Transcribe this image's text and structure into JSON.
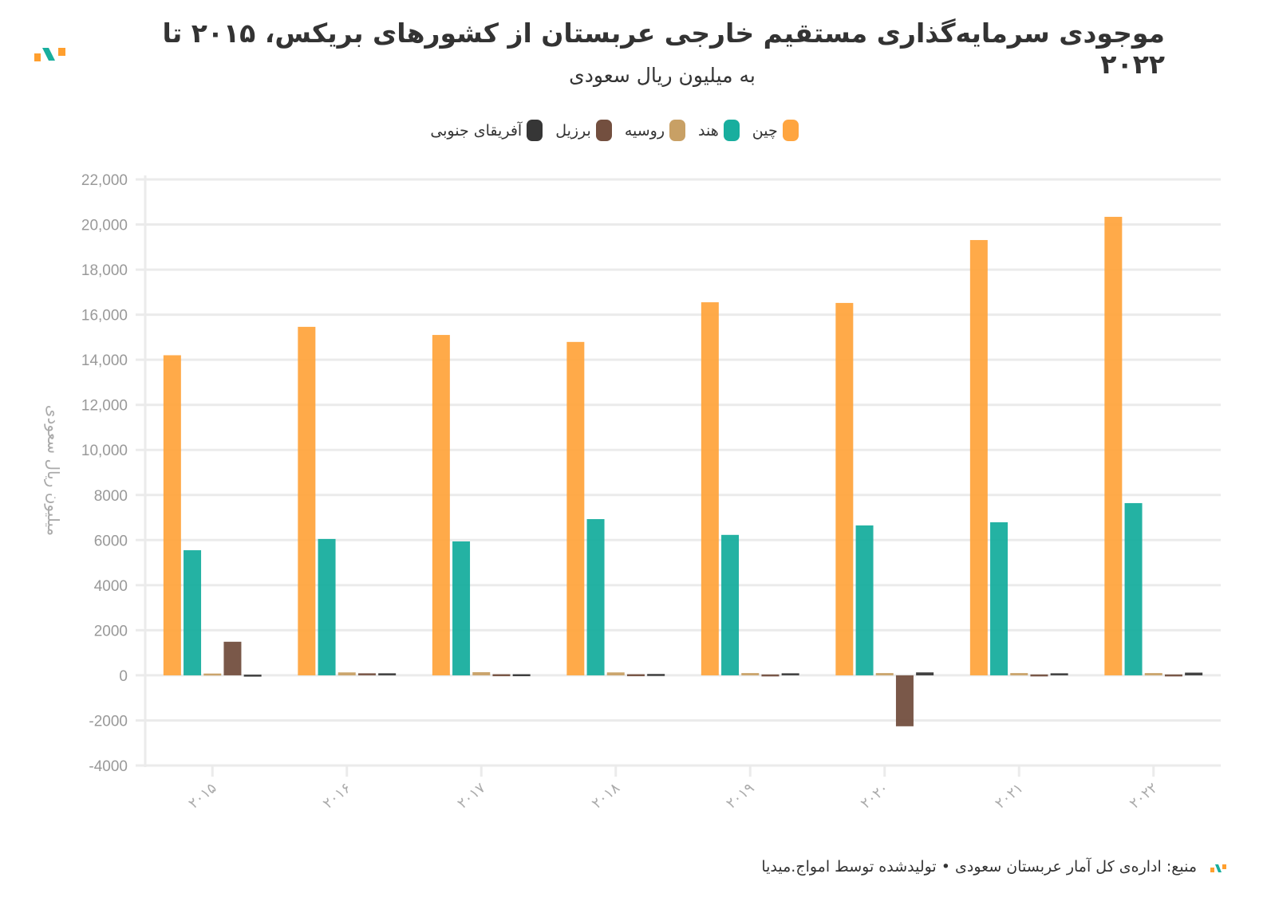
{
  "header": {
    "title": "موجودی سرمایه‌گذاری مستقیم خارجی عربستان از کشورهای بریکس، ۲۰۱۵ تا ۲۰۲۲",
    "subtitle": "به میلیون ریال سعودی"
  },
  "footer": {
    "source": "منبع: اداره‌ی کل آمار عربستان سعودی • تولیدشده توسط امواج.میدیا"
  },
  "chart_data": {
    "type": "bar",
    "title": "موجودی سرمایه‌گذاری مستقیم خارجی عربستان از کشورهای بریکس، ۲۰۱۵ تا ۲۰۲۲",
    "subtitle": "به میلیون ریال سعودی",
    "xlabel": "",
    "ylabel": "میلیون ریال سعودی",
    "ylim": [
      -4000,
      22000
    ],
    "yticks": [
      -4000,
      -2000,
      0,
      2000,
      4000,
      6000,
      8000,
      10000,
      12000,
      14000,
      16000,
      18000,
      20000,
      22000
    ],
    "ytick_labels": [
      "-4000",
      "-2000",
      "0",
      "2000",
      "4000",
      "6000",
      "8000",
      "10,000",
      "12,000",
      "14,000",
      "16,000",
      "18,000",
      "20,000",
      "22,000"
    ],
    "categories": [
      "۲۰۱۵",
      "۲۰۱۶",
      "۲۰۱۷",
      "۲۰۱۸",
      "۲۰۱۹",
      "۲۰۲۰",
      "۲۰۲۱",
      "۲۰۲۲"
    ],
    "grid": true,
    "legend_position": "top-center",
    "series": [
      {
        "name": "چین",
        "color": "#ffa53f",
        "values": [
          14200,
          15460,
          15100,
          14790,
          16550,
          16520,
          19310,
          20340
        ]
      },
      {
        "name": "هند",
        "color": "#18ae9e",
        "values": [
          5550,
          6050,
          5940,
          6930,
          6230,
          6650,
          6790,
          7640
        ]
      },
      {
        "name": "روسیه",
        "color": "#c8a065",
        "values": [
          80,
          130,
          140,
          130,
          100,
          100,
          100,
          100
        ]
      },
      {
        "name": "برزیل",
        "color": "#734f3f",
        "values": [
          1490,
          90,
          50,
          50,
          40,
          -2260,
          40,
          40
        ]
      },
      {
        "name": "آفریقای جنوبی",
        "color": "#363636",
        "values": [
          30,
          90,
          50,
          60,
          90,
          130,
          90,
          120
        ]
      }
    ]
  }
}
